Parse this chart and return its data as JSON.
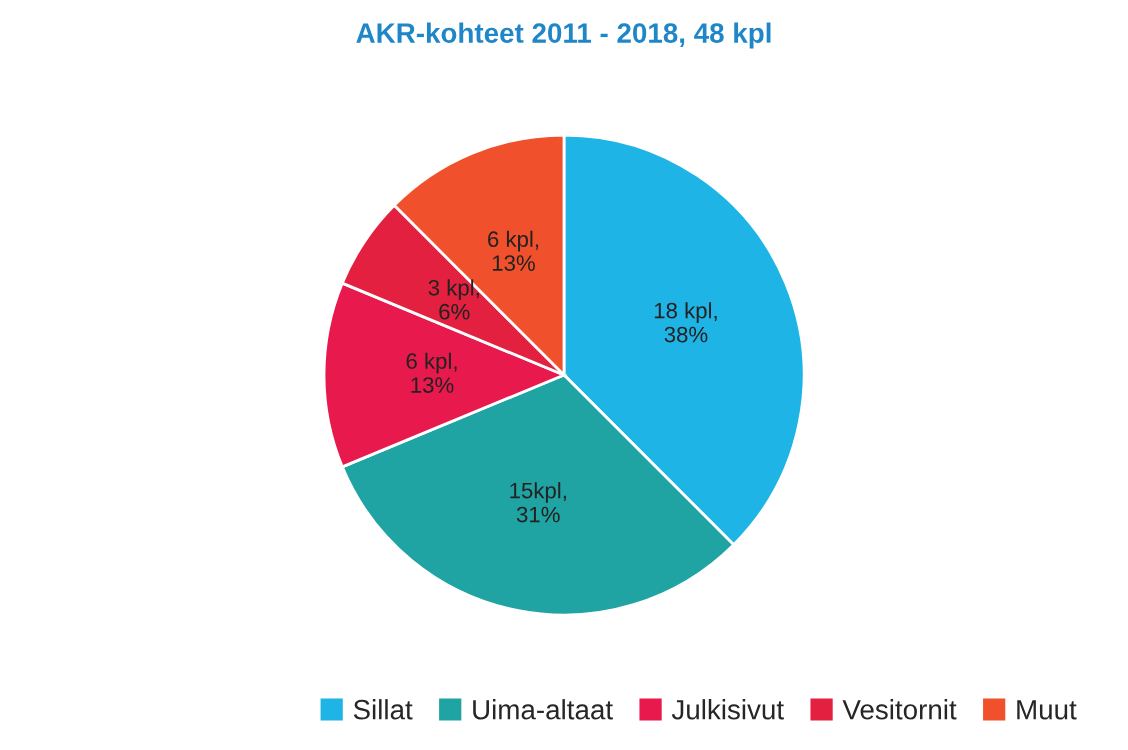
{
  "chart_data": {
    "type": "pie",
    "title": "AKR-kohteet 2011 - 2018, 48 kpl",
    "categories": [
      "Sillat",
      "Uima-altaat",
      "Julkisivut",
      "Vesitornit",
      "Muut"
    ],
    "values": [
      18,
      15,
      6,
      3,
      6
    ],
    "colors": [
      "#1fb4e6",
      "#1fa3a3",
      "#e8194d",
      "#e3203f",
      "#f0502b"
    ],
    "value_labels": [
      "18 kpl,\n38%",
      "15kpl,\n31%",
      "6 kpl,\n13%",
      "3 kpl,\n6%",
      "6 kpl,\n13%"
    ],
    "legend": "bottom"
  }
}
